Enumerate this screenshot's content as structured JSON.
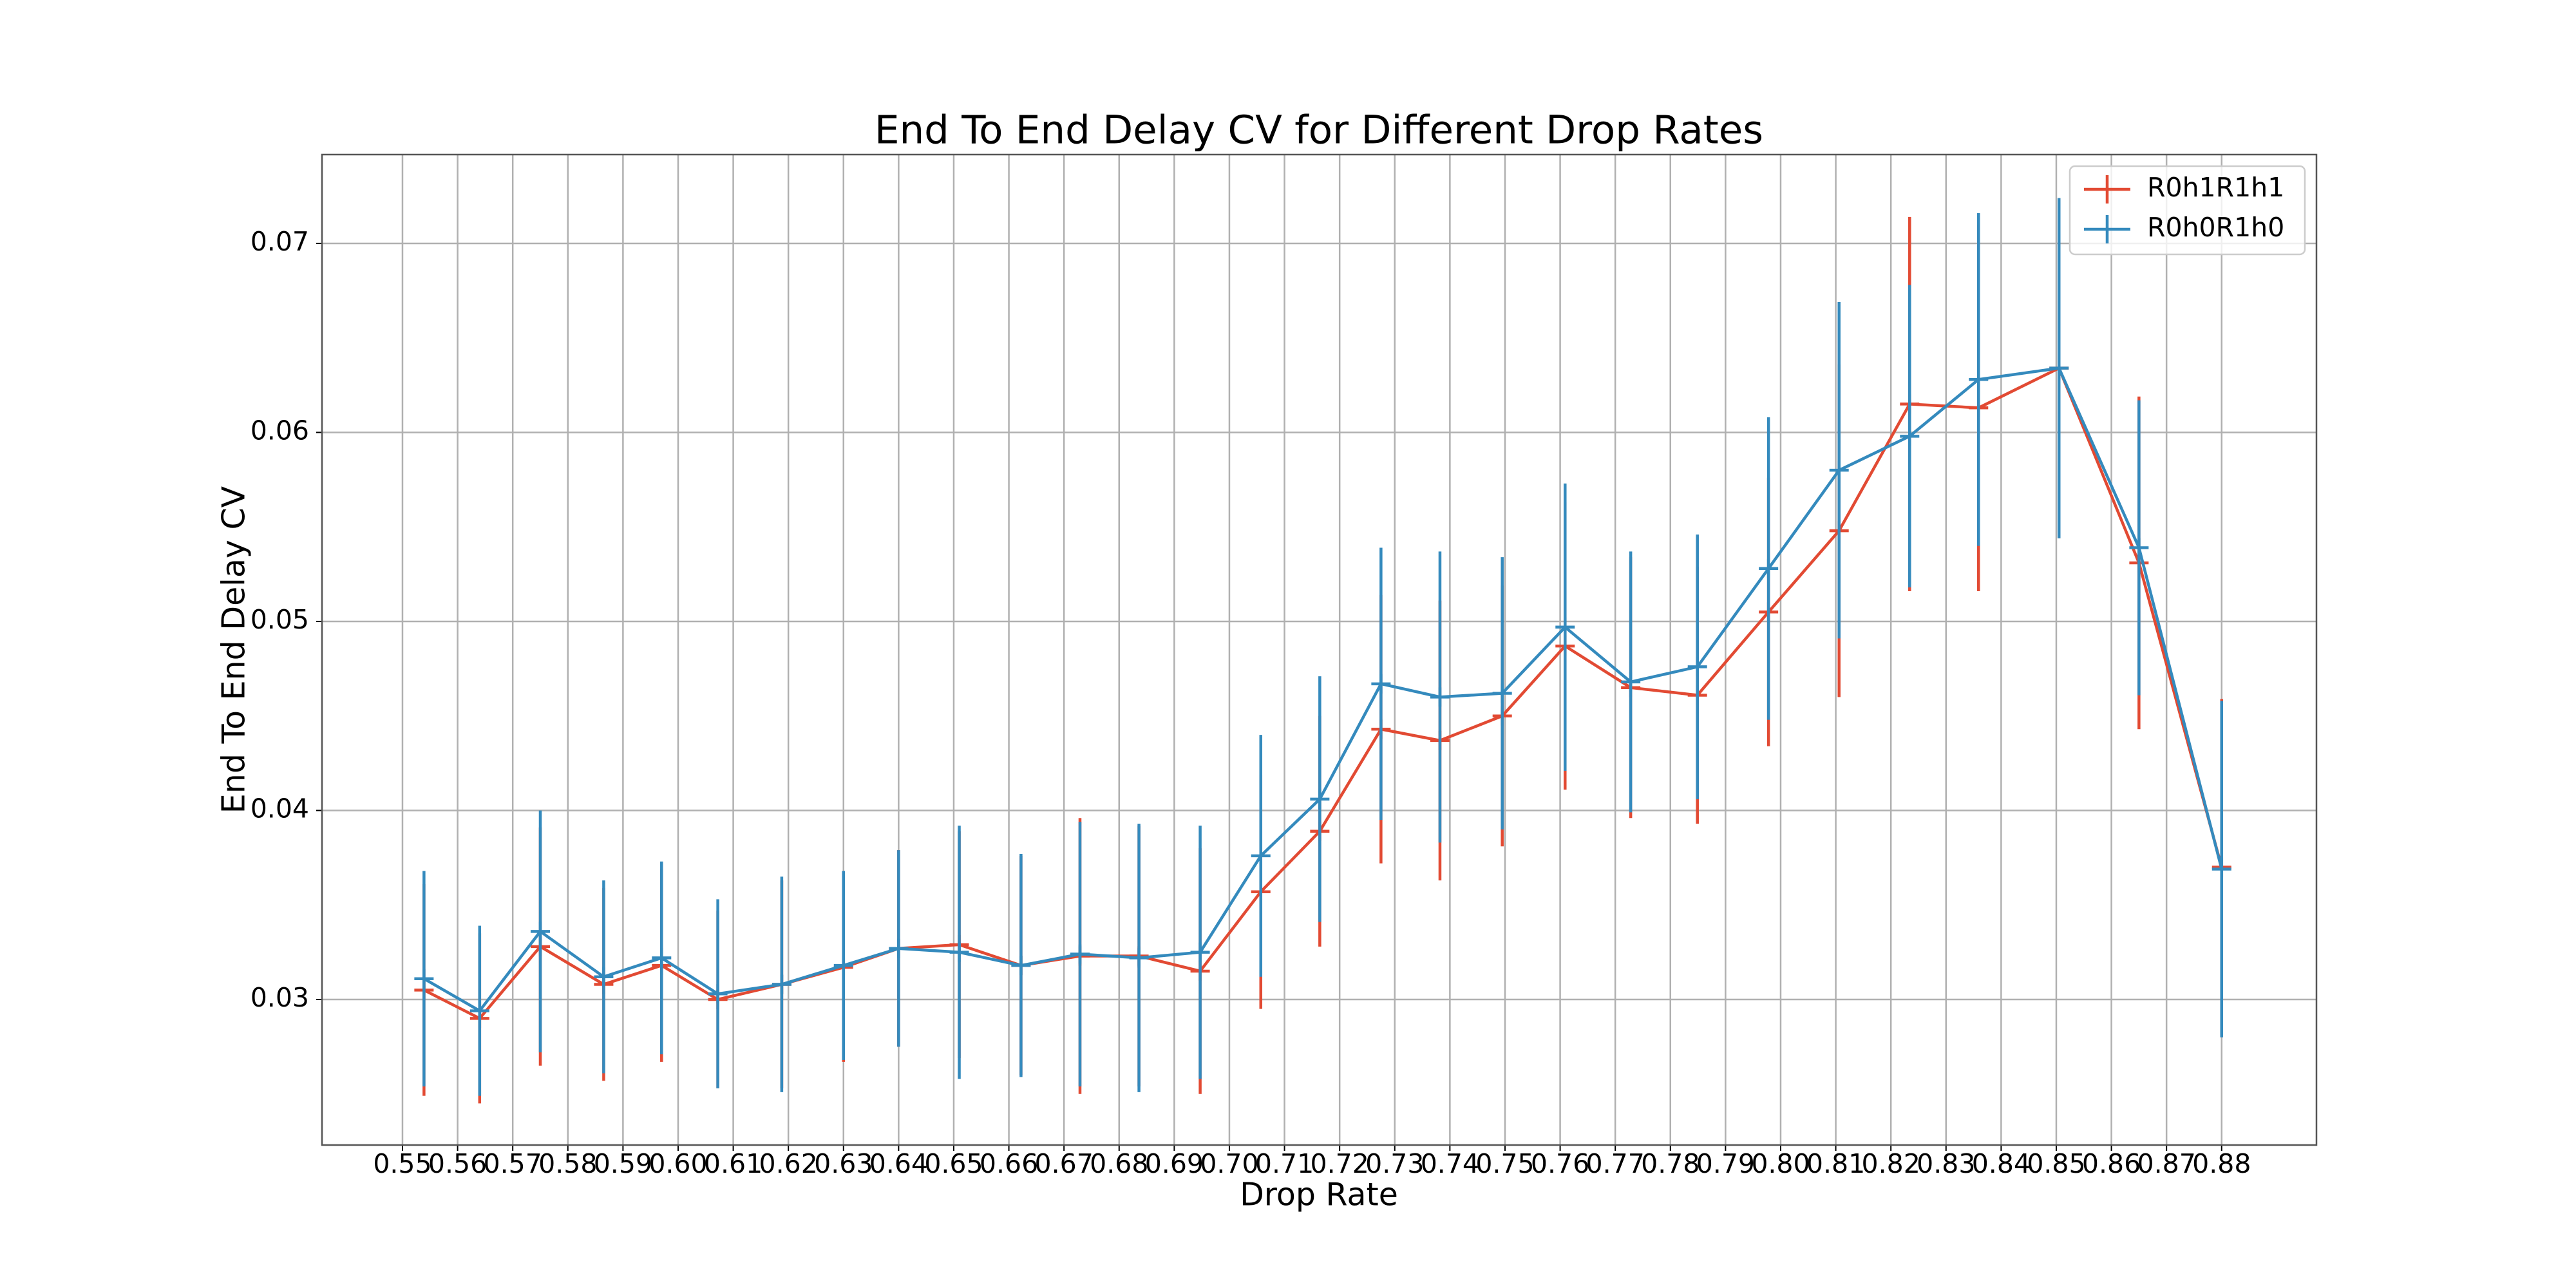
{
  "chart_data": {
    "type": "errorbar-line",
    "title": "End To End Delay CV for Different Drop Rates",
    "xlabel": "Drop Rate",
    "ylabel": "End To End Delay CV",
    "x": [
      0.5539,
      0.564,
      0.575,
      0.5865,
      0.597,
      0.6072,
      0.6188,
      0.63,
      0.64,
      0.651,
      0.6622,
      0.6729,
      0.6836,
      0.6947,
      0.7057,
      0.7164,
      0.7275,
      0.7382,
      0.7495,
      0.7609,
      0.7728,
      0.7849,
      0.7978,
      0.8106,
      0.8234,
      0.8359,
      0.8505,
      0.865,
      0.88
    ],
    "series": [
      {
        "name": "R0h1R1h1",
        "color": "#e24a33",
        "values": [
          0.0305,
          0.029,
          0.0328,
          0.0308,
          0.0318,
          0.03,
          0.0308,
          0.0317,
          0.0327,
          0.0329,
          0.0318,
          0.0323,
          0.0323,
          0.0315,
          0.0357,
          0.0389,
          0.0443,
          0.0437,
          0.045,
          0.0487,
          0.0465,
          0.0461,
          0.0505,
          0.0548,
          0.0615,
          0.0613,
          0.0634,
          0.0531,
          0.037
        ],
        "errors": [
          0.0056,
          0.0045,
          0.0063,
          0.0051,
          0.0051,
          0.0047,
          0.0055,
          0.005,
          0.0052,
          0.006,
          0.0058,
          0.0073,
          0.0069,
          0.0065,
          0.0062,
          0.0061,
          0.0071,
          0.0074,
          0.0069,
          0.0076,
          0.0069,
          0.0068,
          0.0071,
          0.0088,
          0.0099,
          0.0097,
          0.009,
          0.0088,
          0.0089
        ]
      },
      {
        "name": "R0h0R1h0",
        "color": "#348abd",
        "values": [
          0.0311,
          0.0294,
          0.0336,
          0.0312,
          0.0322,
          0.0303,
          0.0308,
          0.0318,
          0.0327,
          0.0325,
          0.0318,
          0.0324,
          0.0322,
          0.0325,
          0.0376,
          0.0406,
          0.0467,
          0.046,
          0.0462,
          0.0497,
          0.0468,
          0.0476,
          0.0528,
          0.058,
          0.0598,
          0.0628,
          0.0634,
          0.0539,
          0.0369
        ],
        "errors": [
          0.0057,
          0.0045,
          0.0064,
          0.0051,
          0.0051,
          0.005,
          0.0057,
          0.005,
          0.0052,
          0.0067,
          0.0059,
          0.007,
          0.0071,
          0.0067,
          0.0064,
          0.0065,
          0.0072,
          0.0077,
          0.0072,
          0.0076,
          0.0069,
          0.007,
          0.008,
          0.0089,
          0.008,
          0.0088,
          0.009,
          0.0078,
          0.0089
        ]
      }
    ],
    "xlim": [
      0.5354,
      0.8972
    ],
    "ylim": [
      0.0223,
      0.0747
    ],
    "xticks": [
      0.55,
      0.56,
      0.57,
      0.58,
      0.59,
      {
        "value": 0.6,
        "label": "0.60"
      },
      0.61,
      0.62,
      0.63,
      0.64,
      0.65,
      0.66,
      0.67,
      0.68,
      0.69,
      {
        "value": 0.7,
        "label": "0.70"
      },
      0.71,
      0.72,
      0.73,
      0.74,
      0.75,
      0.76,
      0.77,
      0.78,
      0.79,
      {
        "value": 0.8,
        "label": "0.80"
      },
      0.81,
      0.82,
      0.83,
      0.84,
      0.85,
      0.86,
      0.87,
      0.88
    ],
    "yticks": [
      0.03,
      0.04,
      0.05,
      0.06,
      0.07
    ],
    "grid": true,
    "legend": "upper right"
  }
}
